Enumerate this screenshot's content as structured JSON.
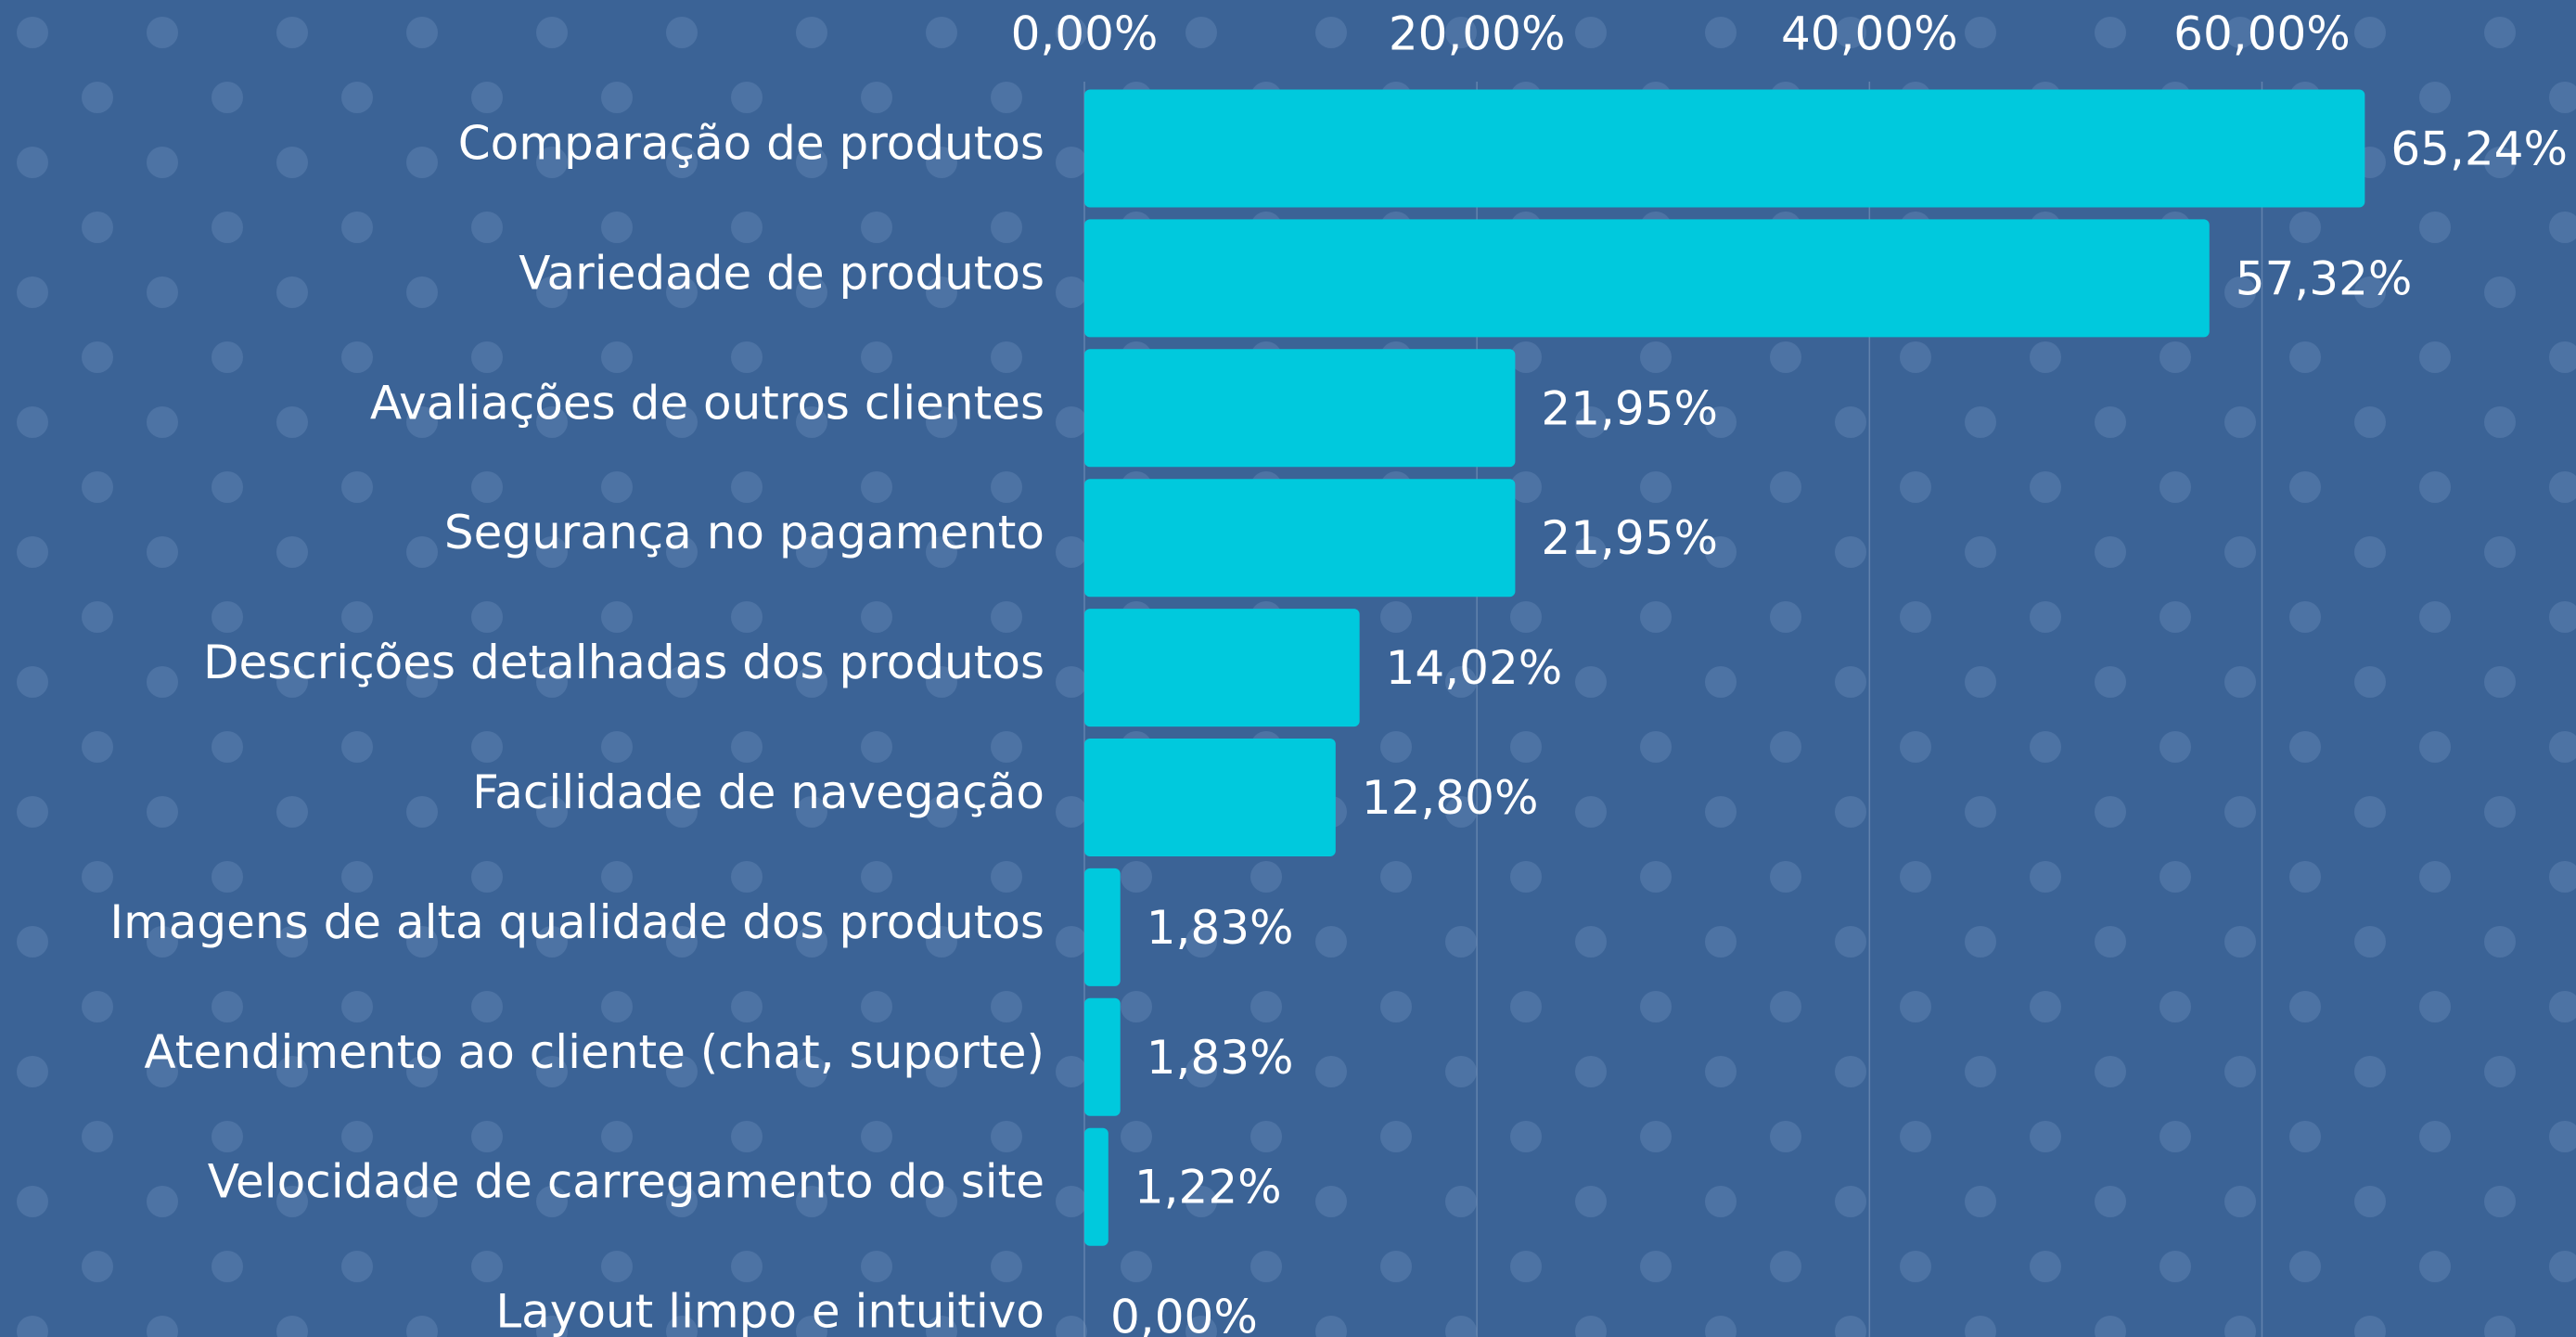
{
  "chart_data": {
    "type": "bar",
    "orientation": "horizontal",
    "categories": [
      "Comparação de produtos",
      "Variedade de produtos",
      "Avaliações de outros clientes",
      "Segurança no pagamento",
      "Descrições detalhadas dos produtos",
      "Facilidade de navegação",
      "Imagens de alta qualidade dos produtos",
      "Atendimento ao cliente (chat, suporte)",
      "Velocidade de carregamento do site",
      "Layout limpo e intuitivo"
    ],
    "values": [
      65.24,
      57.32,
      21.95,
      21.95,
      14.02,
      12.8,
      1.83,
      1.83,
      1.22,
      0
    ],
    "value_labels": [
      "65,24%",
      "57,32%",
      "21,95%",
      "21,95%",
      "14,02%",
      "12,80%",
      "1,83%",
      "1,83%",
      "1,22%",
      "0,00%"
    ],
    "color": "#00c9dd",
    "xlim": [
      0,
      76
    ],
    "xticks": [
      {
        "value": 0,
        "label": "0,00%"
      },
      {
        "value": 20,
        "label": "20,00%"
      },
      {
        "value": 40,
        "label": "40,00%"
      },
      {
        "value": 60,
        "label": "60,00%"
      }
    ],
    "grid": true
  }
}
